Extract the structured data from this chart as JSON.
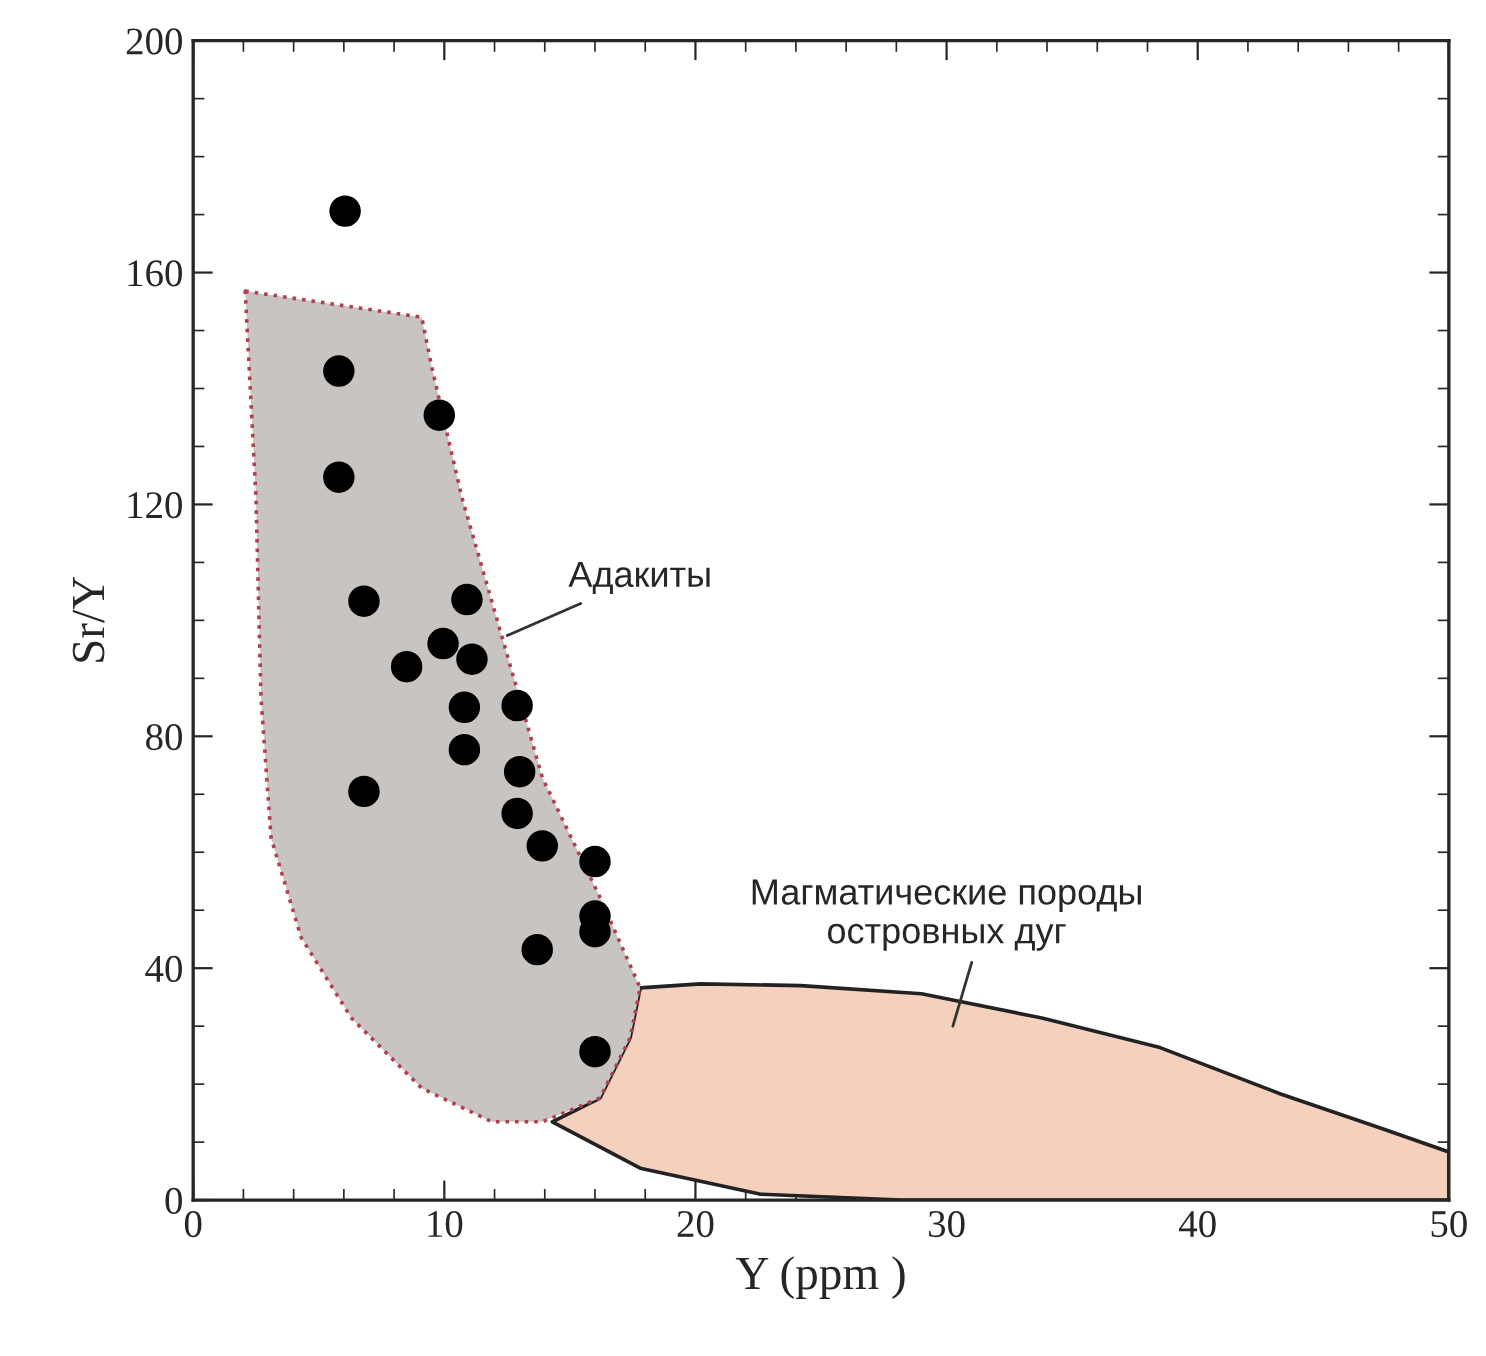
{
  "chart_data": {
    "type": "scatter",
    "xlabel": "Y (ppm )",
    "ylabel": "Sr/Y",
    "xlim": [
      0,
      50
    ],
    "ylim": [
      0,
      200
    ],
    "xticks": [
      0,
      10,
      20,
      30,
      40,
      50
    ],
    "yticks": [
      0,
      40,
      80,
      120,
      160,
      200
    ],
    "grid": false,
    "marker": "circle",
    "series": [
      {
        "type": "area",
        "color": "#f5d0bc",
        "marker": "none",
        "line_style": "solid",
        "x": [
          17.8,
          20.2,
          24.2,
          29,
          33.8,
          38.5,
          43.3,
          47.3,
          50,
          50,
          28.2,
          22.6,
          17.8,
          14.3,
          16.2,
          17.4
        ],
        "values": [
          36.6,
          37.3,
          37,
          35.6,
          31.4,
          26.3,
          18.3,
          12.4,
          8.3,
          0,
          0,
          1,
          5.5,
          13.5,
          17.6,
          28
        ]
      },
      {
        "type": "area",
        "color": "#c8c4c2",
        "marker": "none",
        "line_style": "dotted",
        "x": [
          2.07,
          9.1,
          9.5,
          10.7,
          12.3,
          13.9,
          16.2,
          17.8,
          17.4,
          16.2,
          13.9,
          11.9,
          9.1,
          6.3,
          4.3,
          3.1,
          2.7,
          2.5
        ],
        "values": [
          156.8,
          152.3,
          143.7,
          121.2,
          97.1,
          72.9,
          52.2,
          36.6,
          28,
          17.6,
          13.5,
          13.5,
          19.3,
          31.4,
          45.3,
          62.5,
          86.7,
          121.2
        ]
      },
      {
        "color": "#000000",
        "x": [
          6.05,
          5.8,
          5.8,
          6.8,
          6.8,
          9.8,
          8.5,
          9.95,
          10.9,
          11.1,
          10.8,
          10.8,
          12.9,
          13.0,
          12.9,
          13.9,
          13.7,
          16.0,
          16.0,
          16.0,
          16.0
        ],
        "values": [
          170.6,
          143,
          124.7,
          103.3,
          70.5,
          135.4,
          92.0,
          96.0,
          103.6,
          93.3,
          85.0,
          77.7,
          85.3,
          73.9,
          66.7,
          61.1,
          43.2,
          58.4,
          49.0,
          46.3,
          25.6
        ]
      }
    ],
    "annotations": [
      {
        "text": "Адакиты",
        "x": 12.3,
        "y": 97
      },
      "Магматические породы\nостровных дуг"
    ]
  }
}
